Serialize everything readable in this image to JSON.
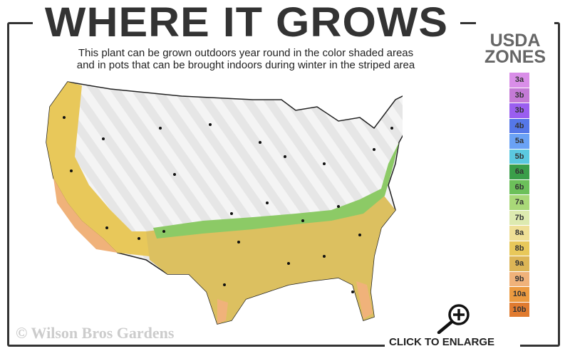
{
  "header": {
    "title": "WHERE IT GROWS",
    "subtitle_line1": "This plant can be grown outdoors year round in the color shaded areas",
    "subtitle_line2": "and in pots that can be brought indoors during winter in the striped area"
  },
  "legend": {
    "title_line1": "USDA",
    "title_line2": "ZONES",
    "zones": [
      {
        "label": "3a",
        "color": "#d98ee8"
      },
      {
        "label": "3b",
        "color": "#c47ad6"
      },
      {
        "label": "3b",
        "color": "#9a5ef0"
      },
      {
        "label": "4b",
        "color": "#5577e8"
      },
      {
        "label": "5a",
        "color": "#6aa2f5"
      },
      {
        "label": "5b",
        "color": "#5bc8e0"
      },
      {
        "label": "6a",
        "color": "#3a9e4a"
      },
      {
        "label": "6b",
        "color": "#6cc05a"
      },
      {
        "label": "7a",
        "color": "#a9d878"
      },
      {
        "label": "7b",
        "color": "#ddeab0"
      },
      {
        "label": "8a",
        "color": "#efdf96"
      },
      {
        "label": "8b",
        "color": "#e8c85a"
      },
      {
        "label": "9a",
        "color": "#dcb556"
      },
      {
        "label": "9b",
        "color": "#f0b27a"
      },
      {
        "label": "10a",
        "color": "#ec9a40"
      },
      {
        "label": "10b",
        "color": "#e07b30"
      }
    ]
  },
  "watermark": "© Wilson Bros Gardens",
  "enlarge": {
    "label": "CLICK TO ENLARGE",
    "icon": "zoom-in-icon"
  }
}
